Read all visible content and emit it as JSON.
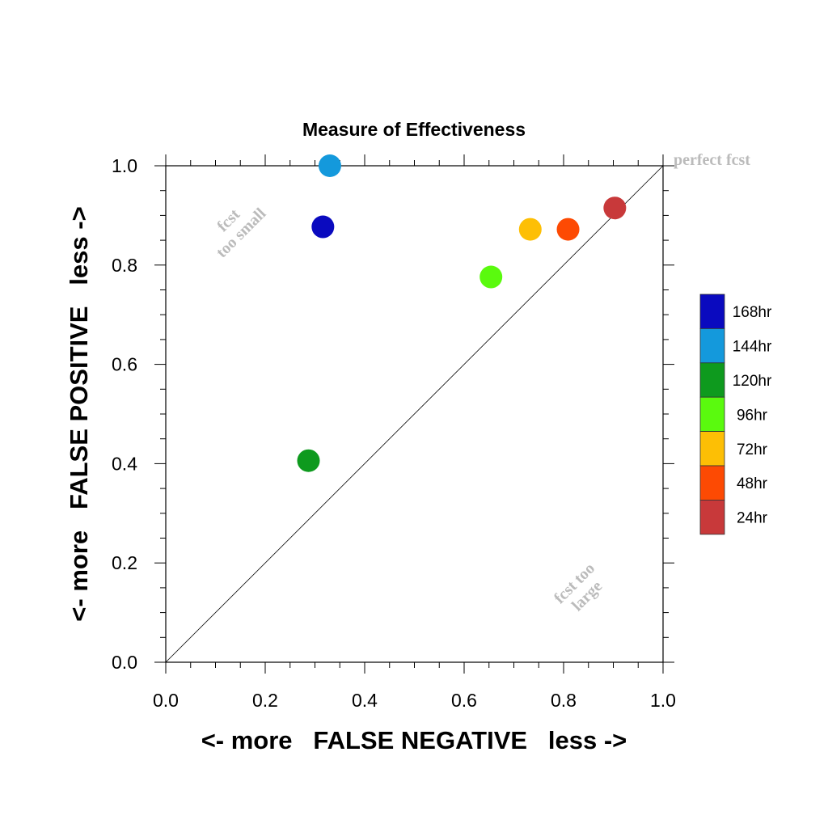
{
  "chart_data": {
    "type": "scatter",
    "title": "Measure of Effectiveness",
    "xlabel": "<- more   FALSE NEGATIVE   less ->",
    "ylabel": "<- more   FALSE POSITIVE   less ->",
    "xlim": [
      0.0,
      1.0
    ],
    "ylim": [
      0.0,
      1.0
    ],
    "x_ticks": [
      "0.0",
      "0.2",
      "0.4",
      "0.6",
      "0.8",
      "1.0"
    ],
    "y_ticks": [
      "0.0",
      "0.2",
      "0.4",
      "0.6",
      "0.8",
      "1.0"
    ],
    "grid": false,
    "diagonal_line": true,
    "annotations": {
      "perfect": "perfect fcst",
      "small_line1": "fcst",
      "small_line2": "too small",
      "large_line1": "fcst too",
      "large_line2": "large"
    },
    "legend_position": "right",
    "series": [
      {
        "name": "168hr",
        "color": "#0a0abf",
        "x": 0.316,
        "y": 0.877
      },
      {
        "name": "144hr",
        "color": "#1499dc",
        "x": 0.33,
        "y": 1.0
      },
      {
        "name": "120hr",
        "color": "#0e9a1e",
        "x": 0.287,
        "y": 0.406
      },
      {
        "name": "96hr",
        "color": "#5afa0e",
        "x": 0.654,
        "y": 0.776
      },
      {
        "name": "72hr",
        "color": "#fdbf05",
        "x": 0.733,
        "y": 0.872
      },
      {
        "name": "48hr",
        "color": "#fd4a03",
        "x": 0.809,
        "y": 0.872
      },
      {
        "name": "24hr",
        "color": "#c8393a",
        "x": 0.903,
        "y": 0.915
      }
    ]
  }
}
